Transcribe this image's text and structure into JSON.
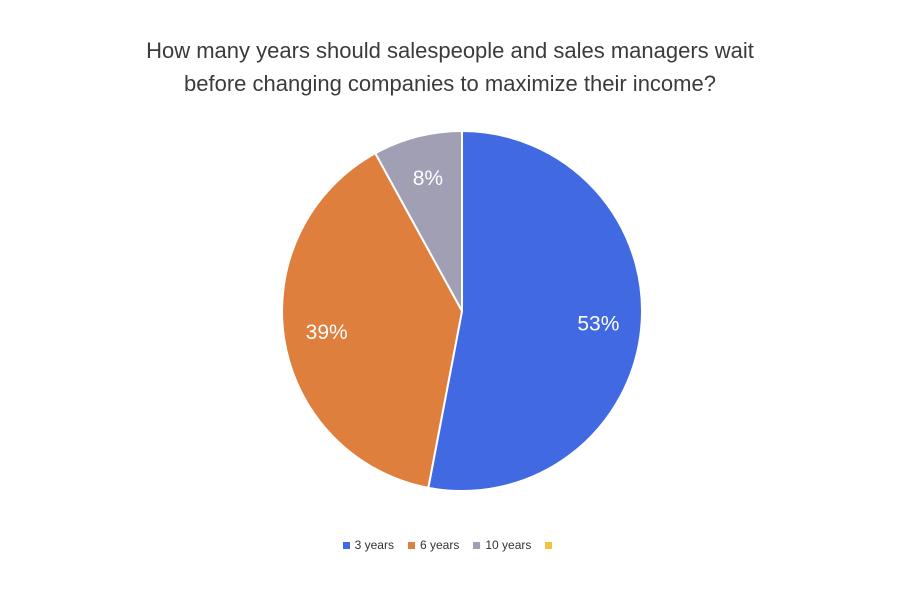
{
  "chart_data": {
    "type": "pie",
    "title_lines": [
      "How many years should salespeople and sales managers wait",
      "before changing companies to maximize their income?"
    ],
    "categories": [
      "3 years",
      "6 years",
      "10 years",
      ""
    ],
    "values": [
      53,
      39,
      8,
      0
    ],
    "labels": [
      "53%",
      "39%",
      "8%",
      ""
    ],
    "colors": [
      "#4169e1",
      "#de7f3e",
      "#a09fb4",
      "#f5c142"
    ],
    "legend_position": "bottom"
  }
}
